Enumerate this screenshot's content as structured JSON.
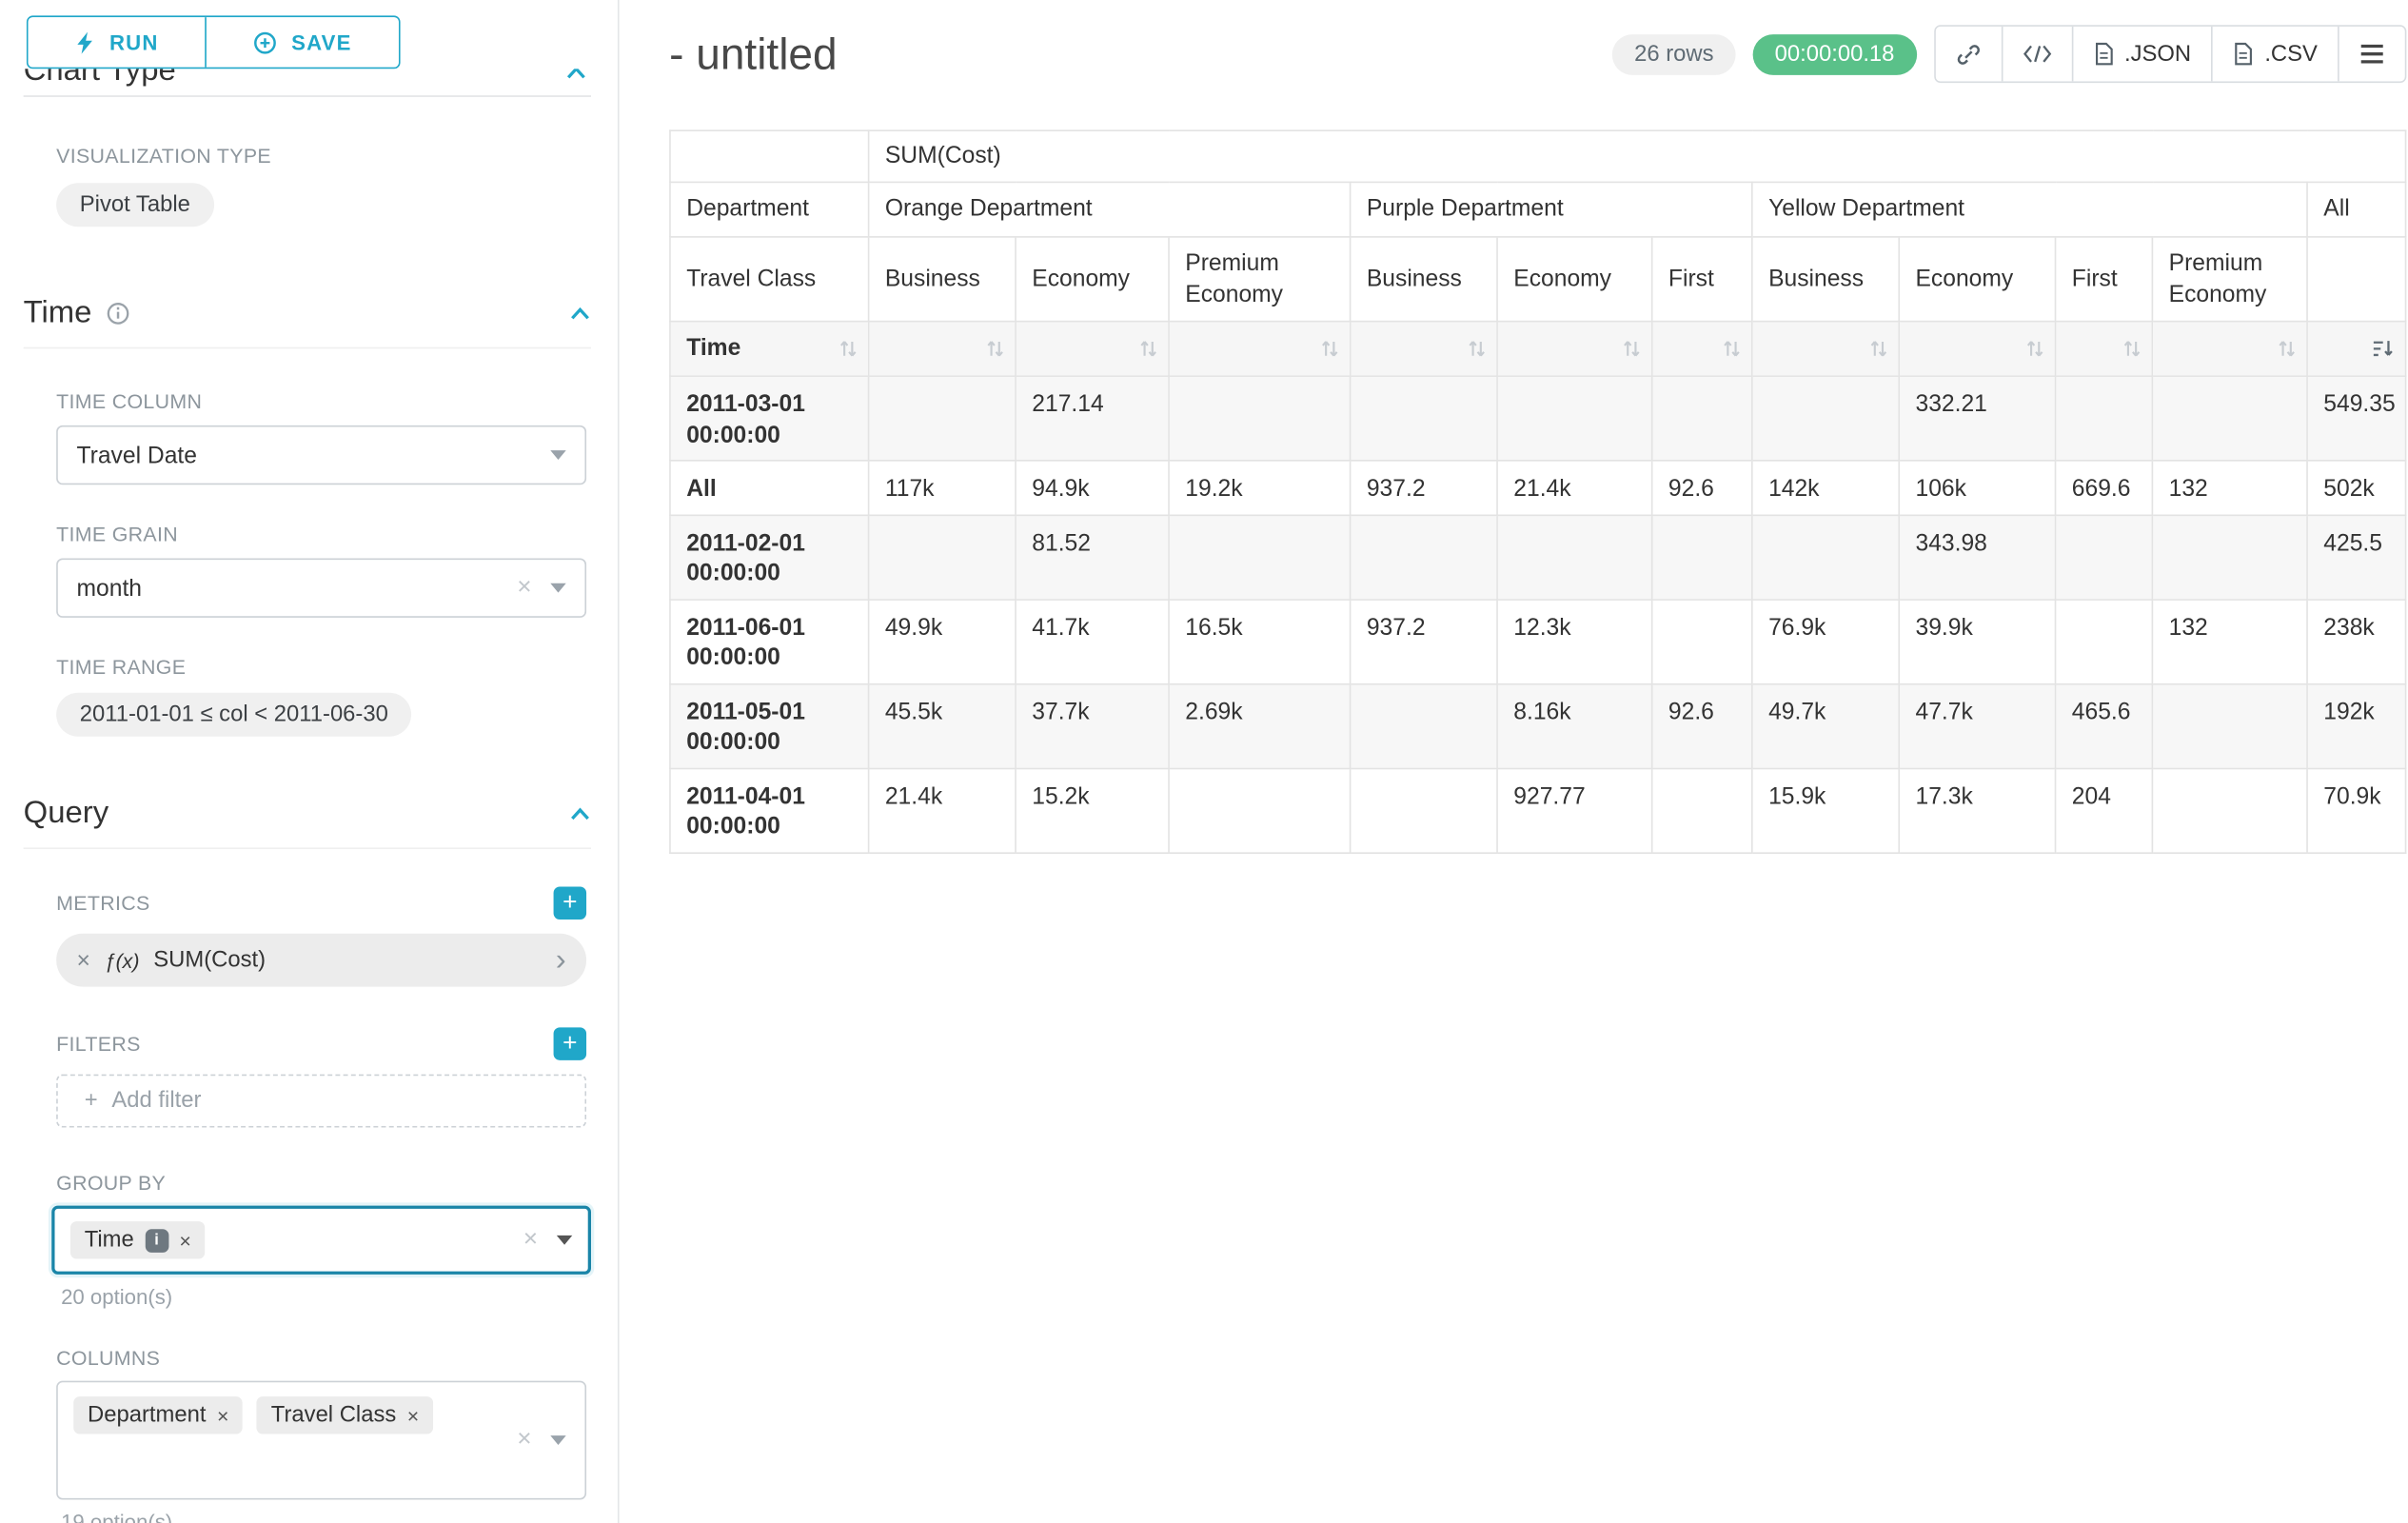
{
  "colors": {
    "accent": "#20a7c9",
    "success": "#5ac189"
  },
  "toolbar": {
    "run_label": "RUN",
    "save_label": "SAVE"
  },
  "sidebar": {
    "chart_type_heading": "Chart Type",
    "visualization_type_label": "VISUALIZATION TYPE",
    "visualization_type_value": "Pivot Table",
    "time_section": {
      "title": "Time",
      "time_column_label": "TIME COLUMN",
      "time_column_value": "Travel Date",
      "time_grain_label": "TIME GRAIN",
      "time_grain_value": "month",
      "time_range_label": "TIME RANGE",
      "time_range_value": "2011-01-01 ≤ col < 2011-06-30"
    },
    "query_section": {
      "title": "Query",
      "metrics_label": "METRICS",
      "metric_fx": "ƒ(x)",
      "metric_value": "SUM(Cost)",
      "filters_label": "FILTERS",
      "add_filter_label": "Add filter",
      "group_by_label": "GROUP BY",
      "group_by_tags": [
        "Time"
      ],
      "group_by_options_hint": "20 option(s)",
      "columns_label": "COLUMNS",
      "columns_tags": [
        "Department",
        "Travel Class"
      ],
      "columns_options_hint": "19 option(s)"
    }
  },
  "header": {
    "title": "- untitled",
    "rows_badge": "26 rows",
    "timer_badge": "00:00:00.18",
    "json_label": ".JSON",
    "csv_label": ".CSV"
  },
  "chart_data": {
    "type": "table",
    "metric": "SUM(Cost)",
    "row_dimension_label": "Department",
    "class_dimension_label": "Travel Class",
    "time_label": "Time",
    "column_groups": [
      {
        "name": "Orange Department",
        "classes": [
          "Business",
          "Economy",
          "Premium Economy"
        ]
      },
      {
        "name": "Purple Department",
        "classes": [
          "Business",
          "Economy",
          "First"
        ]
      },
      {
        "name": "Yellow Department",
        "classes": [
          "Business",
          "Economy",
          "First",
          "Premium Economy"
        ]
      },
      {
        "name": "All",
        "classes": [
          ""
        ]
      }
    ],
    "rows": [
      {
        "time": "2011-03-01 00:00:00",
        "values": [
          "",
          "217.14",
          "",
          "",
          "",
          "",
          "",
          "332.21",
          "",
          "",
          "549.35"
        ]
      },
      {
        "time": "All",
        "values": [
          "117k",
          "94.9k",
          "19.2k",
          "937.2",
          "21.4k",
          "92.6",
          "142k",
          "106k",
          "669.6",
          "132",
          "502k"
        ]
      },
      {
        "time": "2011-02-01 00:00:00",
        "values": [
          "",
          "81.52",
          "",
          "",
          "",
          "",
          "",
          "343.98",
          "",
          "",
          "425.5"
        ]
      },
      {
        "time": "2011-06-01 00:00:00",
        "values": [
          "49.9k",
          "41.7k",
          "16.5k",
          "937.2",
          "12.3k",
          "",
          "76.9k",
          "39.9k",
          "",
          "132",
          "238k"
        ]
      },
      {
        "time": "2011-05-01 00:00:00",
        "values": [
          "45.5k",
          "37.7k",
          "2.69k",
          "",
          "8.16k",
          "92.6",
          "49.7k",
          "47.7k",
          "465.6",
          "",
          "192k"
        ]
      },
      {
        "time": "2011-04-01 00:00:00",
        "values": [
          "21.4k",
          "15.2k",
          "",
          "",
          "927.77",
          "",
          "15.9k",
          "17.3k",
          "204",
          "",
          "70.9k"
        ]
      }
    ],
    "sorted_column": "All",
    "sort_direction": "desc"
  }
}
